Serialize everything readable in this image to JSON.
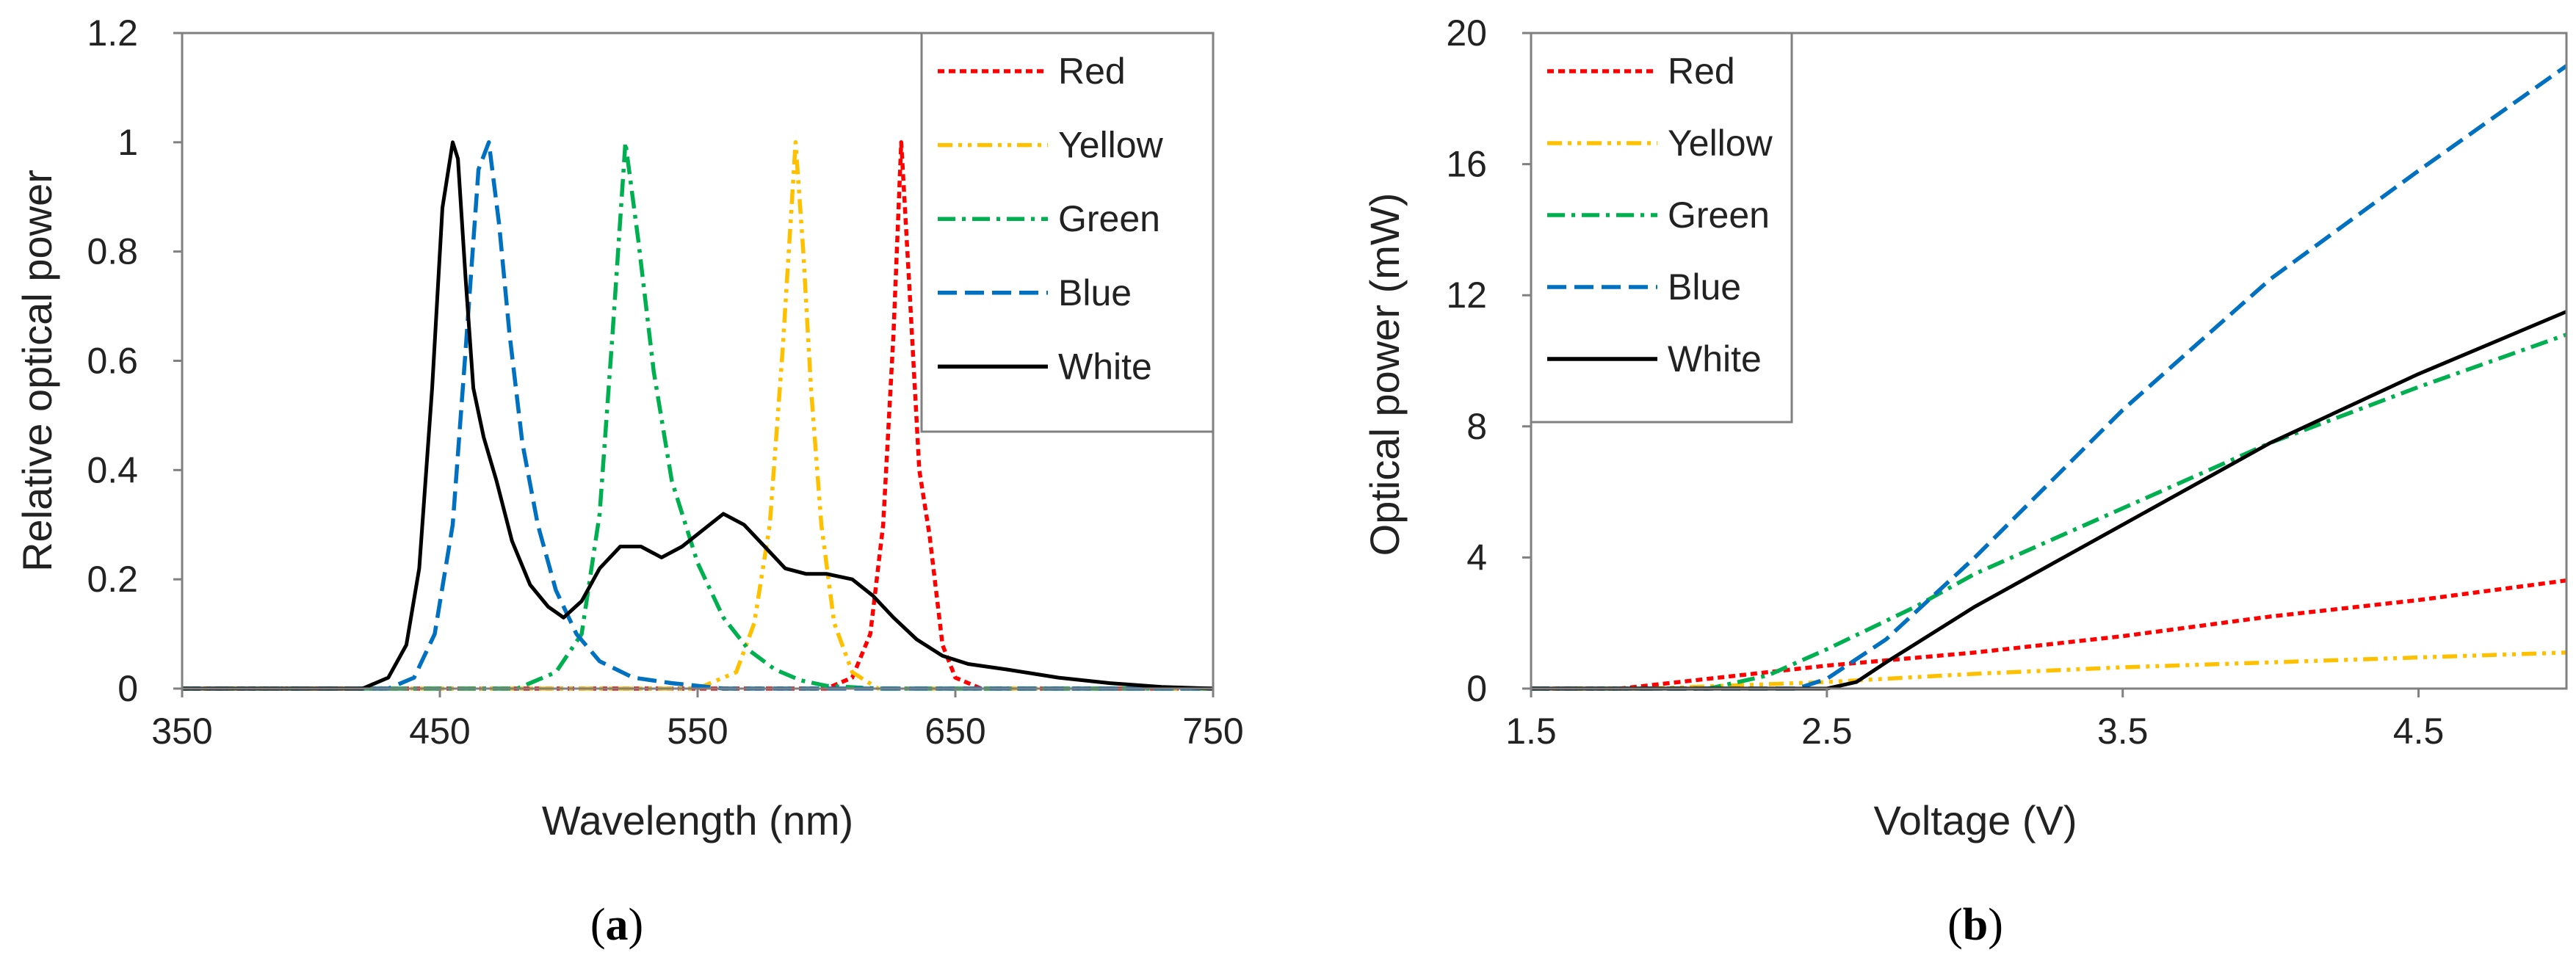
{
  "colors": {
    "red": "#ff0000",
    "yellow": "#ffc000",
    "green": "#00b050",
    "blue": "#0070c0",
    "white": "#000000",
    "axis": "#808080"
  },
  "chart_data": [
    {
      "type": "line",
      "caption_letter": "a",
      "xlabel": "Wavelength (nm)",
      "ylabel": "Relative optical power",
      "xlim": [
        350,
        750
      ],
      "ylim": [
        0,
        1.2
      ],
      "xticks": [
        350,
        450,
        550,
        650,
        750
      ],
      "yticks": [
        0,
        0.2,
        0.4,
        0.6,
        0.8,
        1,
        1.2
      ],
      "ytick_labels": [
        "0",
        "0.2",
        "0.4",
        "0.6",
        "0.8",
        "1",
        "1.2"
      ],
      "grid": false,
      "legend_position": "top-right",
      "series": [
        {
          "name": "Red",
          "style": "dotted",
          "x": [
            350,
            600,
            610,
            617,
            622,
            626,
            629,
            632,
            636,
            640,
            645,
            650,
            660,
            750
          ],
          "y": [
            0,
            0,
            0.02,
            0.1,
            0.3,
            0.65,
            1.0,
            0.75,
            0.4,
            0.28,
            0.08,
            0.02,
            0,
            0
          ]
        },
        {
          "name": "Yellow",
          "style": "dashdotdot",
          "x": [
            350,
            550,
            565,
            572,
            578,
            583,
            588,
            591,
            594,
            598,
            603,
            610,
            620,
            750
          ],
          "y": [
            0,
            0,
            0.03,
            0.12,
            0.3,
            0.62,
            1.0,
            0.8,
            0.55,
            0.3,
            0.12,
            0.03,
            0,
            0
          ]
        },
        {
          "name": "Green",
          "style": "dashdot",
          "x": [
            350,
            480,
            495,
            505,
            512,
            517,
            522,
            527,
            533,
            540,
            550,
            560,
            570,
            580,
            590,
            600,
            620,
            750
          ],
          "y": [
            0,
            0,
            0.03,
            0.1,
            0.32,
            0.65,
            1.0,
            0.82,
            0.58,
            0.38,
            0.23,
            0.13,
            0.07,
            0.035,
            0.015,
            0.005,
            0,
            0
          ]
        },
        {
          "name": "Blue",
          "style": "dashed",
          "x": [
            350,
            430,
            440,
            448,
            455,
            460,
            465,
            469,
            473,
            477,
            482,
            488,
            495,
            503,
            512,
            525,
            540,
            560,
            600,
            750
          ],
          "y": [
            0,
            0,
            0.02,
            0.1,
            0.3,
            0.62,
            0.95,
            1.0,
            0.85,
            0.65,
            0.45,
            0.3,
            0.18,
            0.1,
            0.05,
            0.02,
            0.01,
            0,
            0,
            0
          ]
        },
        {
          "name": "White",
          "style": "solid",
          "x": [
            350,
            420,
            430,
            437,
            442,
            447,
            451,
            455,
            457,
            460,
            463,
            467,
            472,
            478,
            485,
            492,
            498,
            505,
            512,
            520,
            528,
            536,
            544,
            552,
            560,
            568,
            576,
            584,
            592,
            600,
            610,
            618,
            626,
            635,
            645,
            655,
            670,
            690,
            710,
            730,
            750
          ],
          "y": [
            0,
            0,
            0.02,
            0.08,
            0.22,
            0.55,
            0.88,
            1.0,
            0.97,
            0.75,
            0.55,
            0.46,
            0.38,
            0.27,
            0.19,
            0.15,
            0.13,
            0.16,
            0.22,
            0.26,
            0.26,
            0.24,
            0.26,
            0.29,
            0.32,
            0.3,
            0.26,
            0.22,
            0.21,
            0.21,
            0.2,
            0.17,
            0.13,
            0.09,
            0.06,
            0.045,
            0.035,
            0.02,
            0.01,
            0.003,
            0
          ]
        }
      ]
    },
    {
      "type": "line",
      "caption_letter": "b",
      "xlabel": "Voltage (V)",
      "ylabel": "Optical power (mW)",
      "xlim": [
        1.5,
        5.0
      ],
      "ylim": [
        0,
        20
      ],
      "xticks": [
        1.5,
        2.5,
        3.5,
        4.5
      ],
      "xtick_labels": [
        "1.5",
        "2.5",
        "3.5",
        "4.5"
      ],
      "yticks": [
        0,
        4,
        8,
        12,
        16,
        20
      ],
      "ytick_labels": [
        "0",
        "4",
        "8",
        "12",
        "16",
        "20"
      ],
      "grid": false,
      "legend_position": "top-left",
      "series": [
        {
          "name": "Red",
          "style": "dotted",
          "x": [
            1.5,
            1.8,
            2.0,
            2.5,
            3.0,
            3.5,
            4.0,
            4.5,
            5.0
          ],
          "y": [
            0,
            0,
            0.2,
            0.7,
            1.1,
            1.6,
            2.2,
            2.7,
            3.3
          ]
        },
        {
          "name": "Yellow",
          "style": "dashdotdot",
          "x": [
            1.5,
            1.9,
            2.2,
            2.5,
            3.0,
            3.5,
            4.0,
            4.5,
            5.0
          ],
          "y": [
            0,
            0,
            0.1,
            0.2,
            0.45,
            0.65,
            0.8,
            0.95,
            1.1
          ]
        },
        {
          "name": "Green",
          "style": "dashdot",
          "x": [
            1.5,
            2.1,
            2.3,
            2.5,
            2.8,
            3.0,
            3.5,
            4.0,
            4.5,
            5.0
          ],
          "y": [
            0,
            0,
            0.4,
            1.2,
            2.5,
            3.5,
            5.5,
            7.5,
            9.2,
            10.8
          ]
        },
        {
          "name": "Blue",
          "style": "dashed",
          "x": [
            1.5,
            2.4,
            2.5,
            2.7,
            3.0,
            3.5,
            4.0,
            4.5,
            5.0
          ],
          "y": [
            0,
            0,
            0.3,
            1.5,
            4.0,
            8.5,
            12.5,
            15.8,
            19.0
          ]
        },
        {
          "name": "White",
          "style": "solid",
          "x": [
            1.5,
            2.5,
            2.6,
            2.7,
            3.0,
            3.5,
            4.0,
            4.5,
            5.0
          ],
          "y": [
            0,
            0,
            0.2,
            0.8,
            2.5,
            5.0,
            7.5,
            9.6,
            11.5
          ]
        }
      ]
    }
  ]
}
